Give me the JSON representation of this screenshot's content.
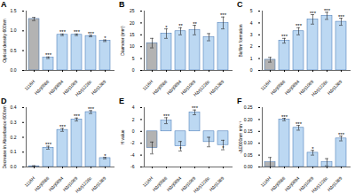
{
  "chart_data": [
    {
      "type": "bar",
      "title": "A",
      "ylabel": "Optical density 600nm",
      "categories": [
        "1116H",
        "HΔrj0586",
        "HΔrj0894",
        "HΔrj1069",
        "HΔrj1228c",
        "HΔrj1389"
      ],
      "values": [
        1.3,
        0.32,
        0.9,
        0.9,
        0.87,
        0.75
      ],
      "errors": [
        0.04,
        0.02,
        0.02,
        0.02,
        0.02,
        0.02
      ],
      "colors": [
        "#b3b3b3",
        "#bcd8f2",
        "#bcd8f2",
        "#bcd8f2",
        "#bcd8f2",
        "#bcd8f2"
      ],
      "annotations": [
        null,
        "***",
        "***",
        "***",
        "***",
        "*"
      ],
      "ylim": [
        0,
        1.5
      ],
      "yticks": [
        {
          "value": 0,
          "label": "0.0"
        },
        0.5,
        {
          "value": 1,
          "label": "1.0"
        },
        1.5
      ]
    },
    {
      "type": "bar",
      "title": "B",
      "ylabel": "Diameter (mm)",
      "categories": [
        "1116H",
        "HΔrj0586",
        "HΔrj0894",
        "HΔrj1069",
        "HΔrj1228c",
        "HΔrj1389"
      ],
      "values": [
        11.5,
        15.5,
        16.5,
        17,
        14,
        20
      ],
      "errors": [
        2,
        2,
        1.5,
        2,
        1.5,
        2.5
      ],
      "colors": [
        "#b3b3b3",
        "#bcd8f2",
        "#bcd8f2",
        "#bcd8f2",
        "#bcd8f2",
        "#bcd8f2"
      ],
      "annotations": [
        null,
        "*",
        "**",
        "**",
        null,
        "***"
      ],
      "ylim": [
        0,
        25
      ],
      "yticks": [
        0,
        5,
        10,
        15,
        20,
        25
      ]
    },
    {
      "type": "bar",
      "title": "C",
      "ylabel": "Biofilm formation",
      "categories": [
        "1116H",
        "HΔrj0586",
        "HΔrj0894",
        "HΔrj1069",
        "HΔrj1228c",
        "HΔrj1389"
      ],
      "values": [
        0.9,
        2.5,
        3.3,
        4.3,
        4.6,
        4.1
      ],
      "errors": [
        0.2,
        0.2,
        0.3,
        0.4,
        0.3,
        0.3
      ],
      "colors": [
        "#b3b3b3",
        "#bcd8f2",
        "#bcd8f2",
        "#bcd8f2",
        "#bcd8f2",
        "#bcd8f2"
      ],
      "annotations": [
        null,
        "***",
        "***",
        "***",
        "***",
        "***"
      ],
      "ylim": [
        0,
        5
      ],
      "yticks": [
        0,
        1,
        2,
        3,
        4,
        5
      ]
    },
    {
      "type": "bar",
      "title": "D",
      "ylabel": "Decrease in Absorbance 600nm",
      "categories": [
        "1116H",
        "HΔrj0586",
        "HΔrj0894",
        "HΔrj1069",
        "HΔrj1228c",
        "HΔrj1389"
      ],
      "values": [
        0.005,
        0.13,
        0.25,
        0.32,
        0.37,
        0.06
      ],
      "errors": [
        0.003,
        0.01,
        0.01,
        0.01,
        0.01,
        0.005
      ],
      "colors": [
        "#b3b3b3",
        "#bcd8f2",
        "#bcd8f2",
        "#bcd8f2",
        "#bcd8f2",
        "#bcd8f2"
      ],
      "annotations": [
        null,
        "***",
        "***",
        "***",
        "***",
        "*"
      ],
      "ylim": [
        0,
        0.4
      ],
      "yticks": [
        {
          "value": 0,
          "label": "0.0"
        },
        0.1,
        0.2,
        0.3,
        0.4
      ]
    },
    {
      "type": "bar",
      "title": "E",
      "ylabel": "H value",
      "categories": [
        "1116H",
        "HΔrj0586",
        "HΔrj0894",
        "HΔrj1069",
        "HΔrj1228c",
        "HΔrj1389"
      ],
      "values": [
        -2.8,
        1.8,
        -2.5,
        3.2,
        -1.8,
        -2.3
      ],
      "errors": [
        1,
        0.5,
        0.8,
        0.4,
        0.8,
        0.8
      ],
      "colors": [
        "#b3b3b3",
        "#bcd8f2",
        "#bcd8f2",
        "#bcd8f2",
        "#bcd8f2",
        "#bcd8f2"
      ],
      "annotations": [
        null,
        "***",
        "*",
        "***",
        null,
        "*"
      ],
      "ylim": [
        -6,
        4
      ],
      "yticks": [
        -6,
        -4,
        -2,
        0,
        2,
        4
      ]
    },
    {
      "type": "bar",
      "title": "F",
      "ylabel": "-ΔE600nm min⁻¹",
      "categories": [
        "1116H",
        "HΔrj0586",
        "HΔrj0894",
        "HΔrj1069",
        "HΔrj1228c",
        "HΔrj1389"
      ],
      "values": [
        0.02,
        0.2,
        0.165,
        0.06,
        0.02,
        0.12
      ],
      "errors": [
        0.02,
        0.005,
        0.01,
        0.01,
        0.015,
        0.01
      ],
      "colors": [
        "#b3b3b3",
        "#bcd8f2",
        "#bcd8f2",
        "#bcd8f2",
        "#bcd8f2",
        "#bcd8f2"
      ],
      "annotations": [
        null,
        "***",
        "***",
        "*",
        null,
        "***"
      ],
      "ylim": [
        0,
        0.25
      ],
      "yticks": [
        {
          "value": 0,
          "label": "0.00"
        },
        {
          "value": 0.05,
          "label": "0.05"
        },
        {
          "value": 0.1,
          "label": "0.10"
        },
        {
          "value": 0.15,
          "label": "0.15"
        },
        {
          "value": 0.2,
          "label": "0.20"
        },
        {
          "value": 0.25,
          "label": "0.25"
        }
      ]
    }
  ]
}
